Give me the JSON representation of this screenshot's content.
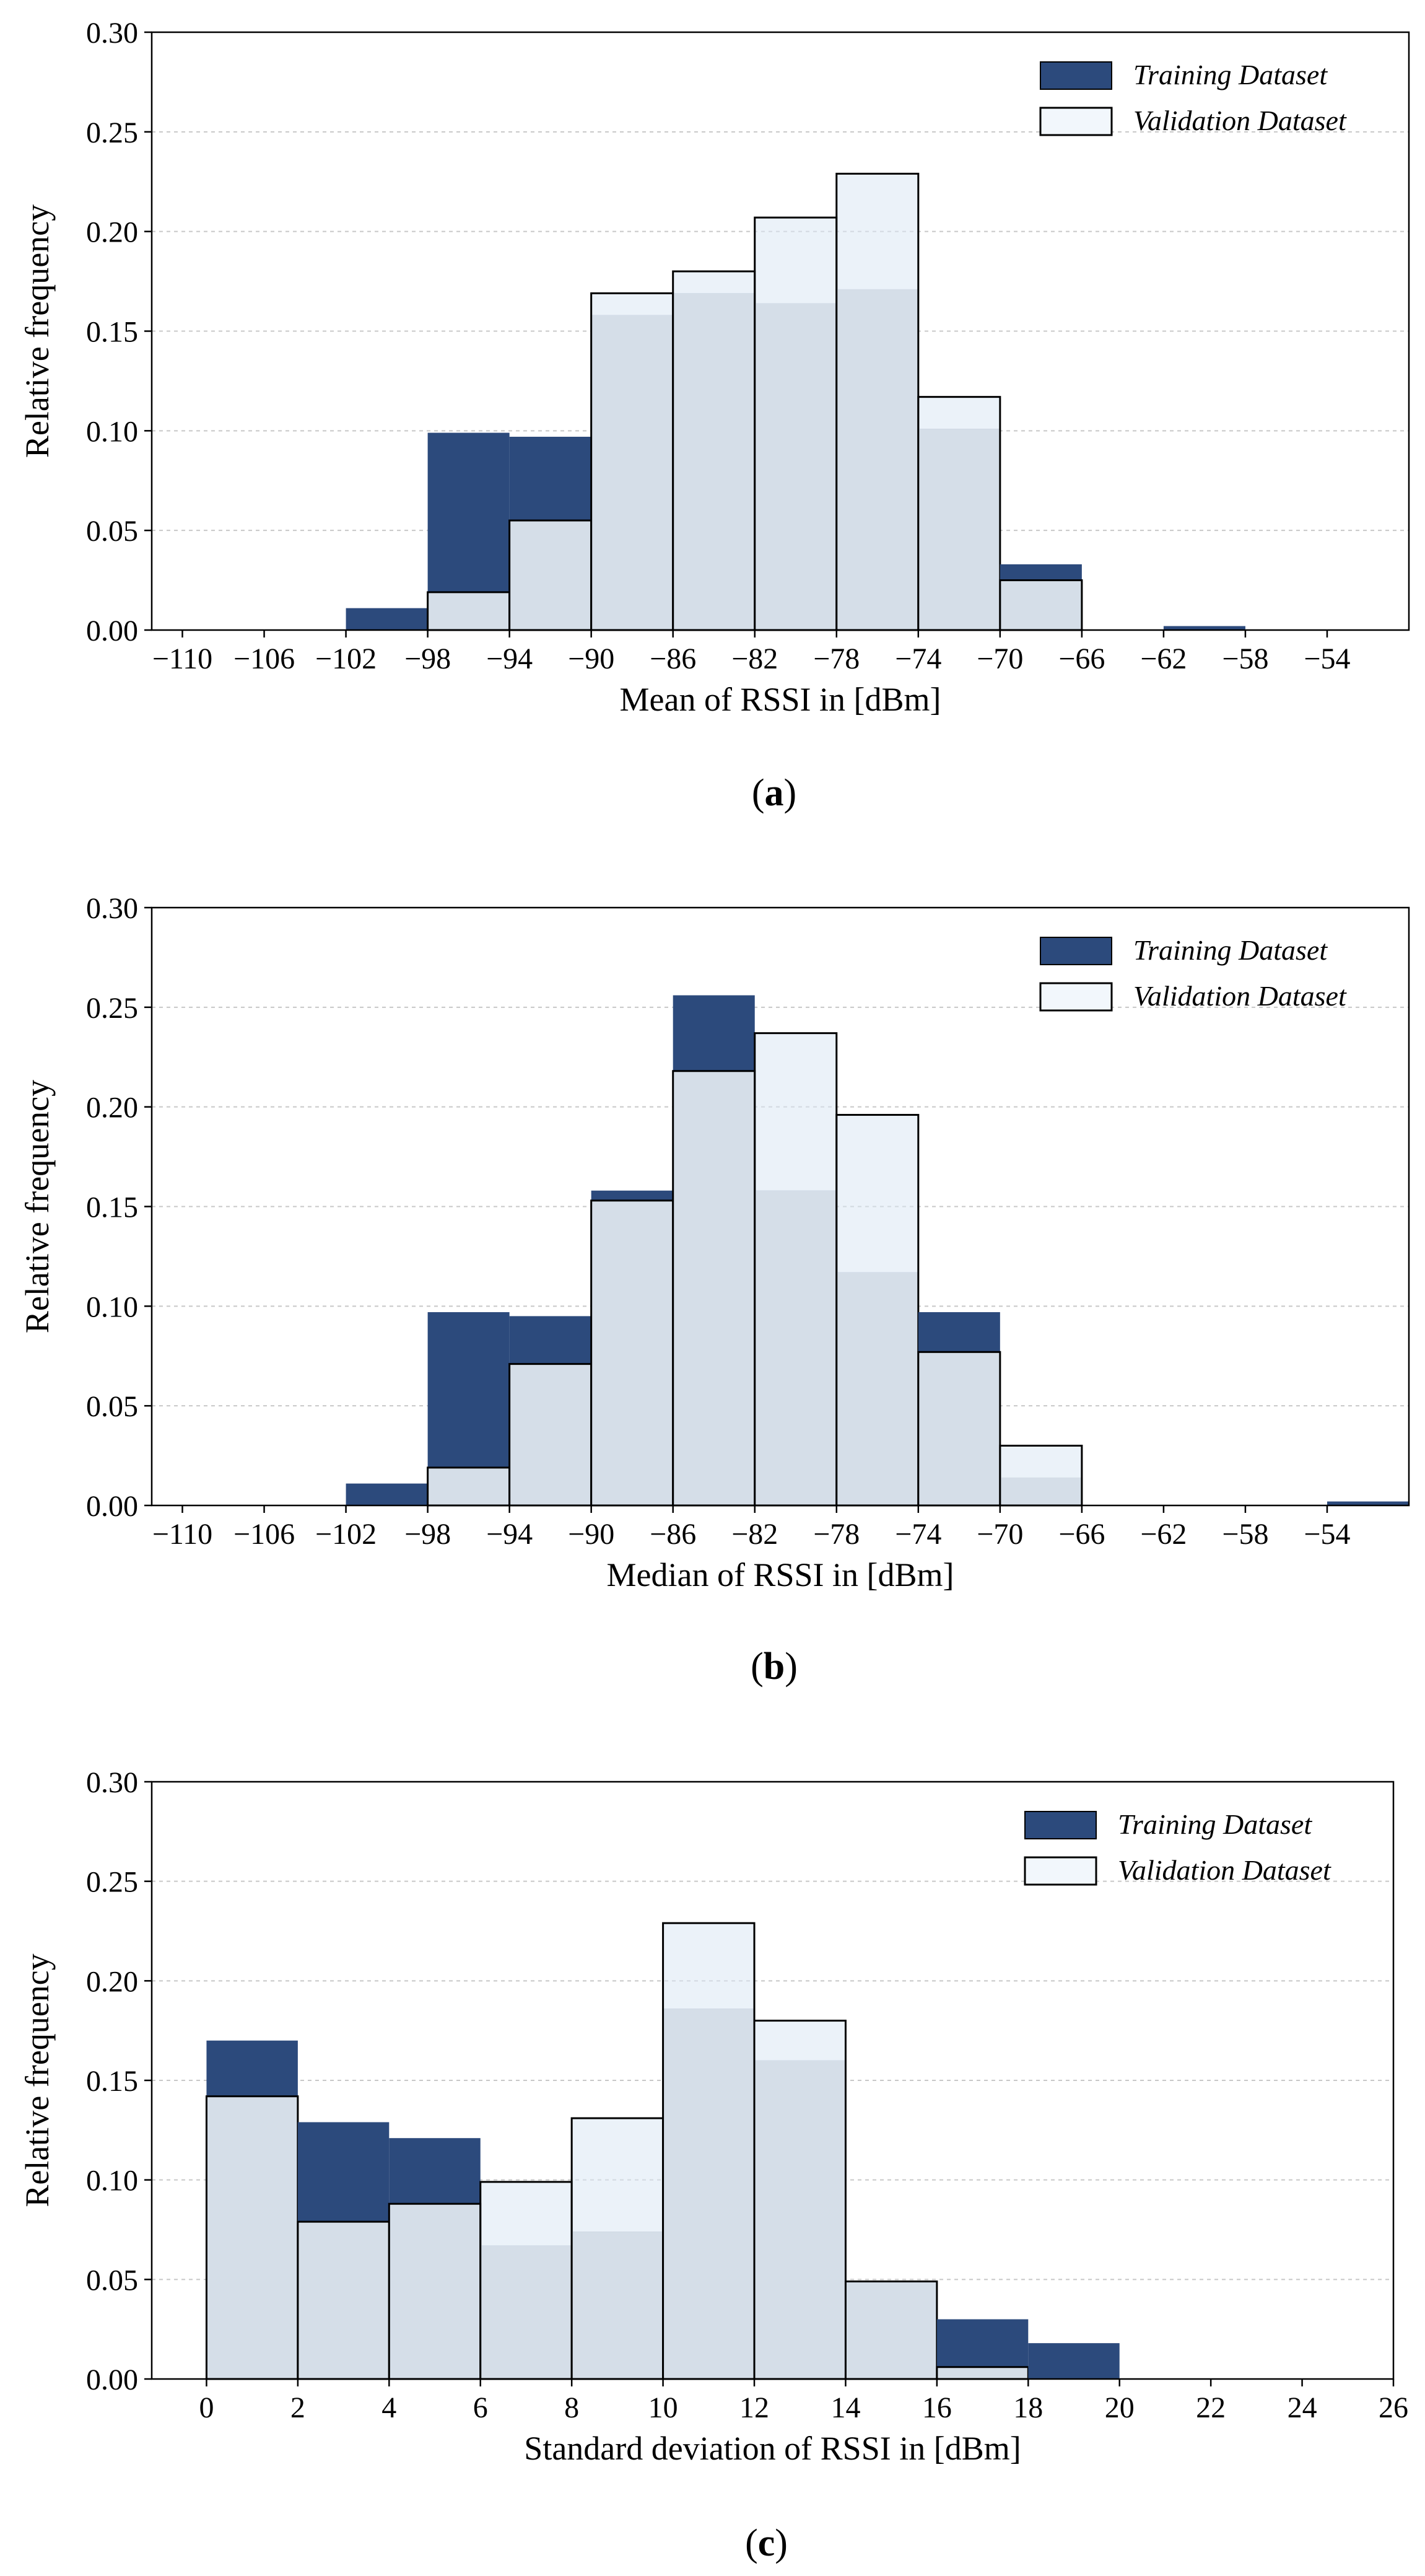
{
  "figure": {
    "captions": [
      "(a)",
      "(b)",
      "(c)"
    ]
  },
  "colors": {
    "training": "#2c4a7c",
    "validation_fill": "#dbe7f4",
    "overlap": "#d5dee8",
    "bar_edge": "#000000",
    "grid": "#c8c8c8"
  },
  "chart_data": [
    {
      "type": "bar",
      "caption_letter": "a",
      "xlabel": "Mean of RSSI in [dBm]",
      "ylabel": "Relative frequency",
      "ylim": [
        0,
        0.3
      ],
      "yticks": [
        0.0,
        0.05,
        0.1,
        0.15,
        0.2,
        0.25,
        0.3
      ],
      "xlim": [
        -111.5,
        -50
      ],
      "xticks": [
        -110,
        -106,
        -102,
        -98,
        -94,
        -90,
        -86,
        -82,
        -78,
        -74,
        -70,
        -66,
        -62,
        -58,
        -54
      ],
      "bin_edges": [
        -110,
        -106,
        -102,
        -98,
        -94,
        -90,
        -86,
        -82,
        -78,
        -74,
        -70,
        -66,
        -62,
        -58,
        -54,
        -50
      ],
      "grid": true,
      "legend_position": "top-right",
      "series": [
        {
          "name": "Training Dataset",
          "values": [
            0.0,
            0.0,
            0.011,
            0.099,
            0.097,
            0.158,
            0.169,
            0.164,
            0.171,
            0.101,
            0.033,
            0.0,
            0.002,
            0.0,
            0.0
          ]
        },
        {
          "name": "Validation Dataset",
          "values": [
            0.0,
            0.0,
            0.0,
            0.019,
            0.055,
            0.169,
            0.18,
            0.207,
            0.229,
            0.117,
            0.025,
            0.0,
            0.0,
            0.0,
            0.0
          ]
        }
      ]
    },
    {
      "type": "bar",
      "caption_letter": "b",
      "xlabel": "Median of RSSI in [dBm]",
      "ylabel": "Relative frequency",
      "ylim": [
        0,
        0.3
      ],
      "yticks": [
        0.0,
        0.05,
        0.1,
        0.15,
        0.2,
        0.25,
        0.3
      ],
      "xlim": [
        -111.5,
        -50
      ],
      "xticks": [
        -110,
        -106,
        -102,
        -98,
        -94,
        -90,
        -86,
        -82,
        -78,
        -74,
        -70,
        -66,
        -62,
        -58,
        -54
      ],
      "bin_edges": [
        -110,
        -106,
        -102,
        -98,
        -94,
        -90,
        -86,
        -82,
        -78,
        -74,
        -70,
        -66,
        -62,
        -58,
        -54,
        -50
      ],
      "grid": true,
      "legend_position": "top-right",
      "series": [
        {
          "name": "Training Dataset",
          "values": [
            0.0,
            0.0,
            0.011,
            0.097,
            0.095,
            0.158,
            0.256,
            0.158,
            0.117,
            0.097,
            0.014,
            0.0,
            0.0,
            0.0,
            0.002
          ]
        },
        {
          "name": "Validation Dataset",
          "values": [
            0.0,
            0.0,
            0.0,
            0.019,
            0.071,
            0.153,
            0.218,
            0.237,
            0.196,
            0.077,
            0.03,
            0.0,
            0.0,
            0.0,
            0.0
          ]
        }
      ]
    },
    {
      "type": "bar",
      "caption_letter": "c",
      "xlabel": "Standard deviation of RSSI in [dBm]",
      "ylabel": "Relative frequency",
      "ylim": [
        0,
        0.3
      ],
      "yticks": [
        0.0,
        0.05,
        0.1,
        0.15,
        0.2,
        0.25,
        0.3
      ],
      "xlim": [
        -1.2,
        26
      ],
      "xticks": [
        0,
        2,
        4,
        6,
        8,
        10,
        12,
        14,
        16,
        18,
        20,
        22,
        24,
        26
      ],
      "bin_edges": [
        0,
        2,
        4,
        6,
        8,
        10,
        12,
        14,
        16,
        18,
        20,
        22,
        24,
        26
      ],
      "grid": true,
      "legend_position": "top-right",
      "series": [
        {
          "name": "Training Dataset",
          "values": [
            0.17,
            0.129,
            0.121,
            0.067,
            0.074,
            0.186,
            0.16,
            0.049,
            0.03,
            0.018,
            0.0,
            0.0,
            0.0
          ]
        },
        {
          "name": "Validation Dataset",
          "values": [
            0.142,
            0.079,
            0.088,
            0.099,
            0.131,
            0.229,
            0.18,
            0.049,
            0.006,
            0.0,
            0.0,
            0.0,
            0.0
          ]
        }
      ]
    }
  ]
}
